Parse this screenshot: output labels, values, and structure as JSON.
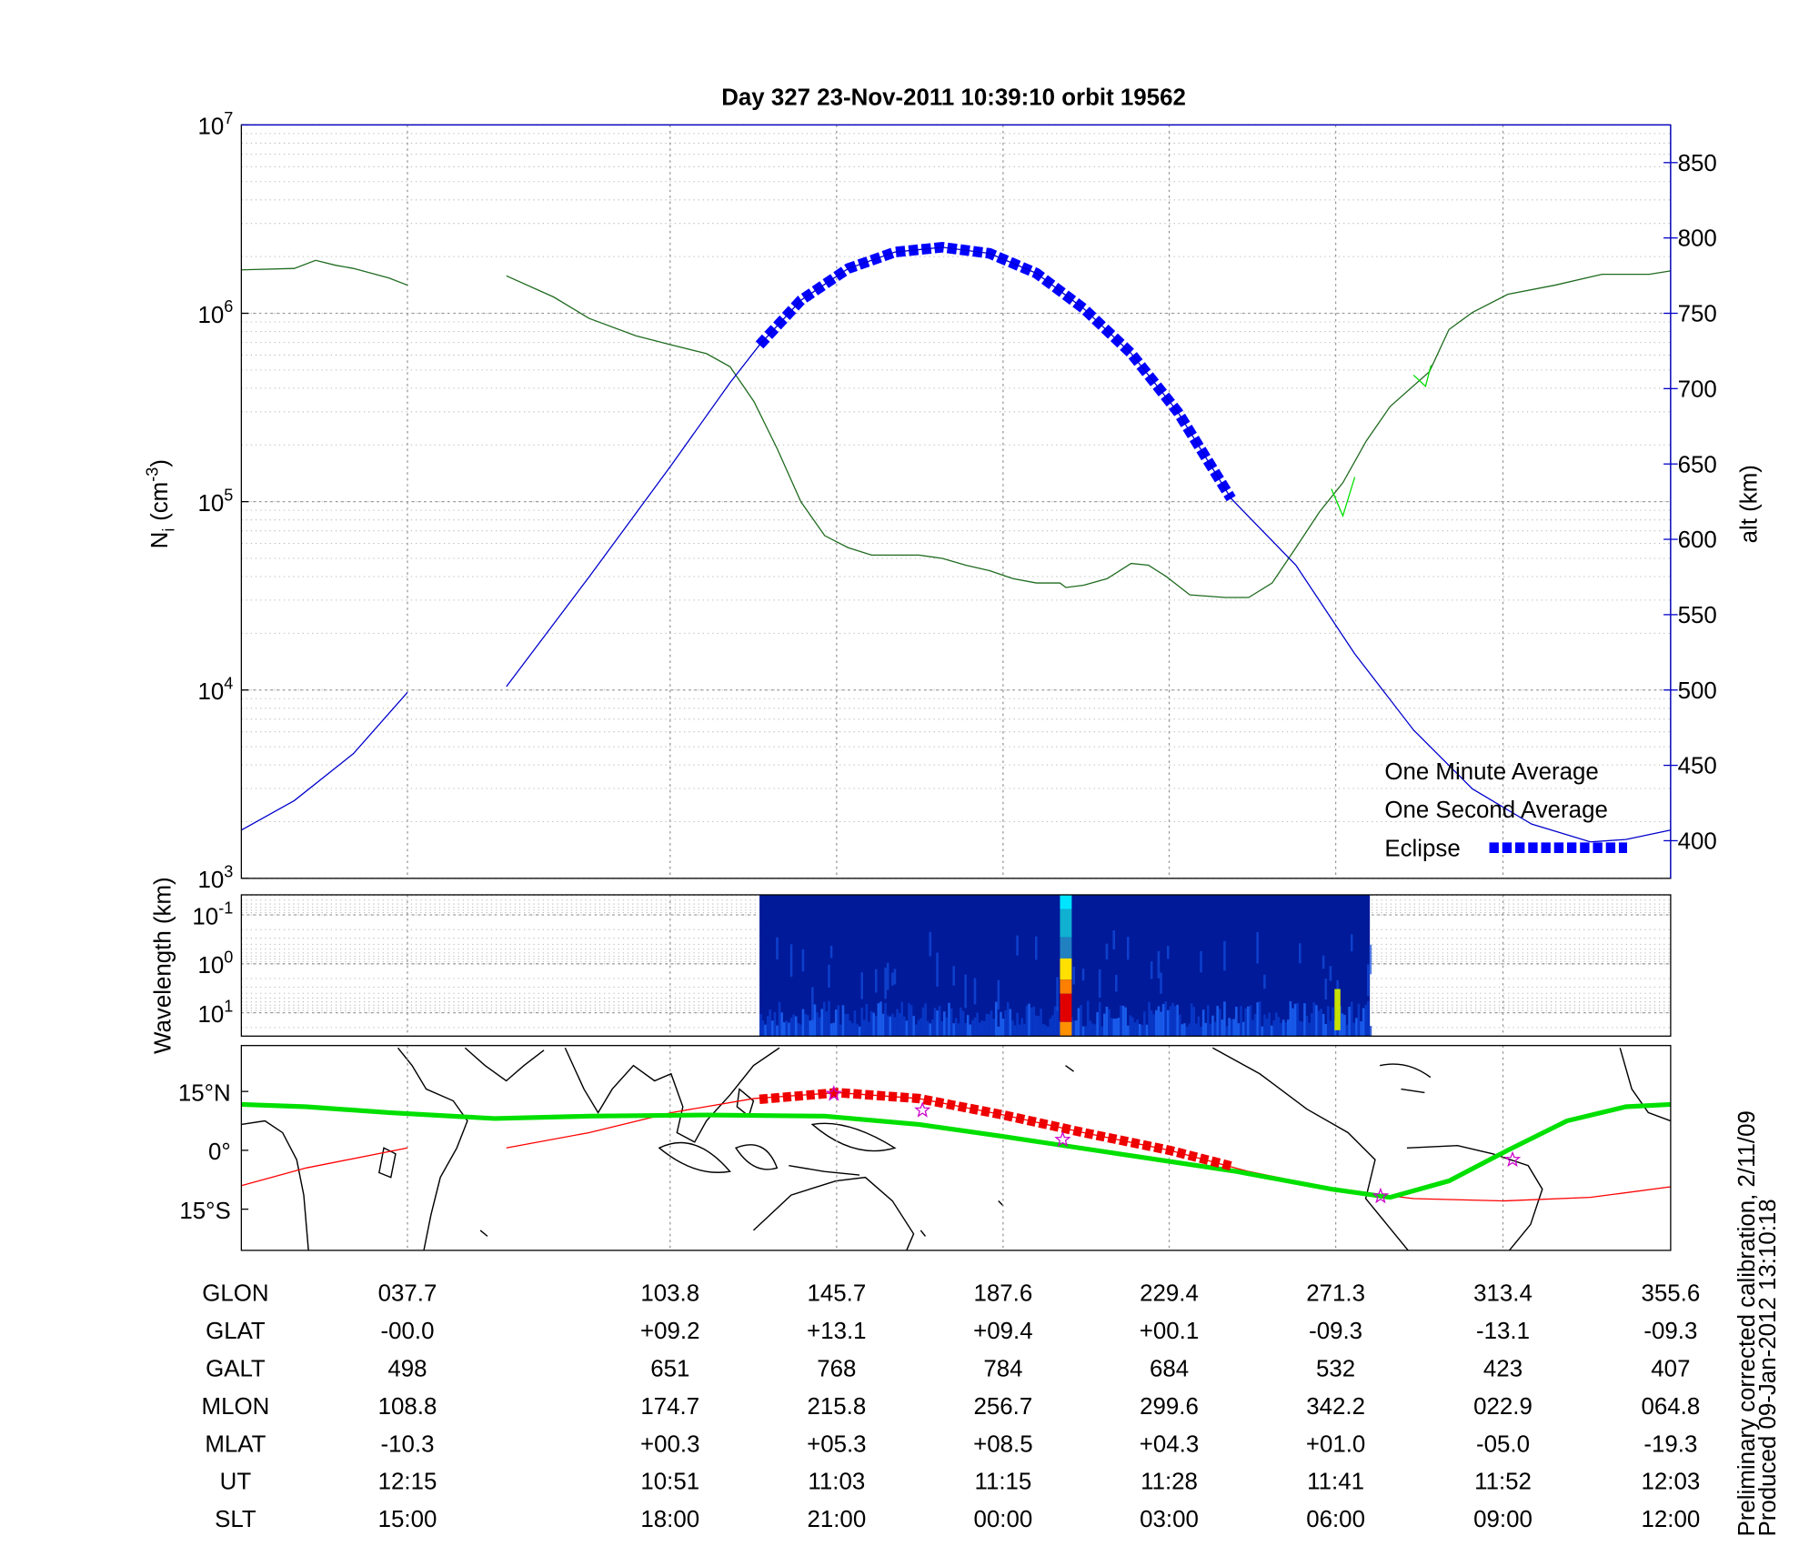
{
  "chart_data": [
    {
      "type": "line",
      "title": "Day 327  23-Nov-2011 10:39:10   orbit 19562",
      "ylabel": {
        "text": "N",
        "sub": "i",
        "unit": "(cm",
        "exp": "-3",
        "close": ")"
      },
      "y2label": "alt (km)",
      "xlim": [
        -4.1,
        355.6
      ],
      "xticks": [
        37.7,
        103.8,
        145.7,
        187.6,
        229.4,
        271.3,
        313.4
      ],
      "log_y": true,
      "ylim": [
        1000,
        10000000
      ],
      "yticks": [
        {
          "value": 1000,
          "label": "10",
          "exp": "3"
        },
        {
          "value": 10000,
          "label": "10",
          "exp": "4"
        },
        {
          "value": 100000,
          "label": "10",
          "exp": "5"
        },
        {
          "value": 1000000,
          "label": "10",
          "exp": "6"
        },
        {
          "value": 10000000,
          "label": "10",
          "exp": "7"
        }
      ],
      "y2lim": [
        375,
        875
      ],
      "y2ticks": [
        400,
        450,
        500,
        550,
        600,
        650,
        700,
        750,
        800,
        850
      ],
      "y2color": "#0000cc",
      "grid": true,
      "legend": "lower right",
      "series": [
        {
          "name": "One Minute Average",
          "color": "#1f6b1f",
          "legend_color": "#000000",
          "x": [
            -4.1,
            9.2,
            14.6,
            19.6,
            24.1,
            33.0,
            37.7,
            50,
            62.6,
            74.5,
            83.4,
            95.2,
            104.1,
            113.0,
            118.9,
            124.9,
            130.8,
            136.7,
            142.7,
            148.6,
            154.5,
            166.4,
            172.3,
            178.2,
            184.2,
            190.1,
            196.0,
            201.9,
            203.4,
            207.9,
            213.8,
            219.8,
            224.2,
            228.7,
            234.6,
            243.5,
            249.4,
            255.3,
            261.3,
            267.2,
            273.1,
            279.0,
            285.0,
            294.9,
            299.8,
            305.7,
            314.6,
            326.5,
            338.3,
            350.2,
            355.6
          ],
          "values": [
            1700000,
            1730000,
            1910000,
            1800000,
            1730000,
            1540000,
            1410000,
            null,
            1580000,
            1220000,
            940000,
            760000,
            680000,
            610000,
            520000,
            340000,
            190000,
            100000,
            66000,
            57000,
            52000,
            52000,
            50000,
            46000,
            43000,
            39000,
            37000,
            37000,
            35000,
            36000,
            39000,
            47000,
            46000,
            40000,
            32000,
            31000,
            31000,
            37000,
            57000,
            88000,
            126000,
            210000,
            320000,
            490000,
            820000,
            1010000,
            1260000,
            1410000,
            1610000,
            1610000,
            1680000
          ]
        },
        {
          "name": "One Second Average",
          "color": "#00e000",
          "legend_color": "#00e000",
          "x": [
            270.2,
            273.1,
            276.1,
            285,
            290.9,
            293.9,
            295.3
          ],
          "values": [
            117000,
            84000,
            135000,
            null,
            470000,
            410000,
            530000
          ]
        },
        {
          "name": "Eclipse",
          "color": "#0000ff",
          "legend_color": "#0000ff",
          "axis": "y2",
          "style": "squares",
          "x": [
            126.3,
            136.7,
            148.6,
            160.4,
            172.3,
            184.2,
            196.0,
            207.9,
            219.8,
            231.6,
            245.0
          ],
          "values": [
            729,
            758.6,
            779.7,
            790.6,
            793.8,
            789.8,
            776.6,
            753.1,
            723.4,
            684.4,
            627
          ]
        },
        {
          "color": "#0000cc",
          "axis": "y2",
          "x": [
            -4.1,
            9.2,
            24.1,
            37.7,
            50,
            62.6,
            83.4,
            104.1,
            118.9,
            126.3,
            136.7,
            148.6,
            160.4,
            172.3,
            184.2,
            196.0,
            207.9,
            219.8,
            231.6,
            245.0,
            261.3,
            276.1,
            290.9,
            305.7,
            320.6,
            335.4,
            344.3,
            355.6
          ],
          "values": [
            407,
            426.6,
            457.8,
            498.4,
            null,
            502.3,
            575,
            649.2,
            704,
            729,
            758.6,
            779.7,
            790.6,
            793.8,
            789.8,
            776.6,
            753.1,
            723.4,
            684.4,
            627,
            582.8,
            524,
            473.4,
            434.4,
            411,
            399.2,
            400.8,
            407
          ]
        }
      ]
    },
    {
      "type": "spectrogram",
      "ylabel": "Wavelength (km)",
      "xlim": [
        -4.1,
        355.6
      ],
      "xticks": [
        37.7,
        103.8,
        145.7,
        187.6,
        229.4,
        271.3,
        313.4
      ],
      "log_y": true,
      "reversed": true,
      "ylim": [
        0.039,
        30
      ],
      "yticks": [
        {
          "value": 0.1,
          "label": "10",
          "exp": "-1"
        },
        {
          "value": 1,
          "label": "10",
          "exp": "0"
        },
        {
          "value": 10,
          "label": "10",
          "exp": "1"
        }
      ],
      "data_extent": [
        126.3,
        279.9
      ]
    },
    {
      "type": "map",
      "xlim": [
        -4.1,
        355.6
      ],
      "xticks": [
        37.7,
        103.8,
        145.7,
        187.6,
        229.4,
        271.3,
        313.4
      ],
      "ylim": [
        -25.5,
        26.7
      ],
      "yticks": [
        {
          "value": 15,
          "label": "15°N"
        },
        {
          "value": 0,
          "label": "0°"
        },
        {
          "value": -15,
          "label": "15°S"
        }
      ],
      "series": [
        {
          "color": "#ff0000",
          "width": 1,
          "x": [
            -4.1,
            12.2,
            37.7,
            50,
            62.6,
            83.4,
            104.1,
            124.9,
            145.9,
            166.4,
            187.7,
            207.9,
            229.5,
            249.4,
            271.3,
            290.9,
            313.4,
            335.4,
            355.6
          ],
          "values": [
            -9.0,
            -4.5,
            0.6,
            null,
            0.6,
            4.5,
            9.6,
            13.2,
            14.7,
            13.2,
            9.0,
            4.5,
            0,
            -5.4,
            -9.9,
            -12.3,
            -12.9,
            -12.0,
            -9.3
          ]
        },
        {
          "color": "#00e000",
          "width": 4,
          "x": [
            -4.1,
            12.2,
            33.0,
            59.6,
            83.4,
            113.0,
            142.7,
            166.4,
            187.1,
            216.8,
            246.4,
            270.2,
            285.0,
            299.8,
            314.6,
            329.5,
            344.3,
            355.6
          ],
          "values": [
            11.7,
            11.1,
            9.6,
            8.1,
            8.7,
            9.0,
            8.7,
            6.6,
            3.6,
            -0.9,
            -5.4,
            -9.9,
            -12.0,
            -7.8,
            0,
            7.5,
            11.1,
            11.7
          ]
        },
        {
          "color": "#ee0000",
          "style": "squares",
          "x": [
            126.3,
            145.9,
            166.4,
            187.7,
            207.9,
            229.5,
            244.9
          ],
          "values": [
            13.0,
            14.7,
            13.2,
            9.0,
            4.5,
            0,
            -4.0
          ]
        },
        {
          "color": "#cc00cc",
          "style": "stars",
          "x": [
            145.0,
            167.3,
            202.6,
            282.6,
            315.8
          ],
          "values": [
            14.4,
            10.2,
            2.7,
            -11.7,
            -2.4
          ]
        }
      ]
    }
  ],
  "table": {
    "columns": [
      37.7,
      103.8,
      145.7,
      187.6,
      229.4,
      271.3,
      313.4,
      355.6
    ],
    "rows": [
      {
        "label": "GLON",
        "cells": [
          "037.7",
          "103.8",
          "145.7",
          "187.6",
          "229.4",
          "271.3",
          "313.4",
          "355.6"
        ]
      },
      {
        "label": "GLAT",
        "cells": [
          "-00.0",
          "+09.2",
          "+13.1",
          "+09.4",
          "+00.1",
          "-09.3",
          "-13.1",
          "-09.3"
        ]
      },
      {
        "label": "GALT",
        "cells": [
          "498",
          "651",
          "768",
          "784",
          "684",
          "532",
          "423",
          "407"
        ]
      },
      {
        "label": "MLON",
        "cells": [
          "108.8",
          "174.7",
          "215.8",
          "256.7",
          "299.6",
          "342.2",
          "022.9",
          "064.8"
        ]
      },
      {
        "label": "MLAT",
        "cells": [
          "-10.3",
          "+00.3",
          "+05.3",
          "+08.5",
          "+04.3",
          "+01.0",
          "-05.0",
          "-19.3"
        ]
      },
      {
        "label": "UT",
        "cells": [
          "12:15",
          "10:51",
          "11:03",
          "11:15",
          "11:28",
          "11:41",
          "11:52",
          "12:03"
        ]
      },
      {
        "label": "SLT",
        "cells": [
          "15:00",
          "18:00",
          "21:00",
          "00:00",
          "03:00",
          "06:00",
          "09:00",
          "12:00"
        ]
      }
    ]
  },
  "footnotes": [
    "Preliminary corrected calibration, 2/11/09",
    "Produced 09-Jan-2012 13:10:18"
  ]
}
